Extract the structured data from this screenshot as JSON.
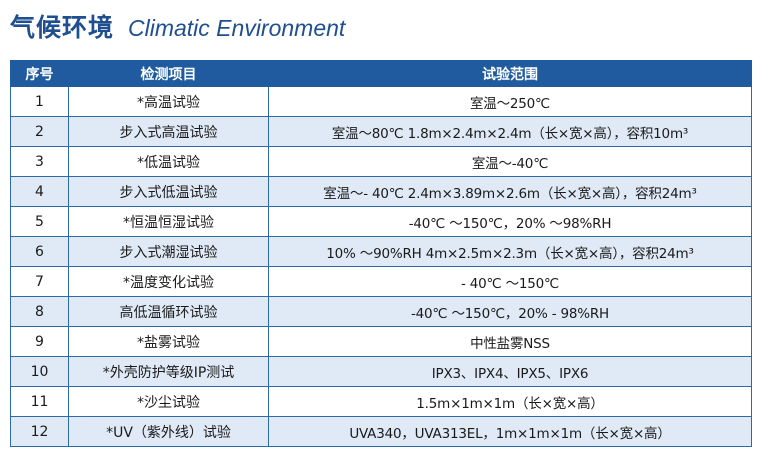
{
  "title": {
    "cn": "气候环境",
    "en": "Climatic Environment"
  },
  "table": {
    "headers": [
      "序号",
      "检测项目",
      "试验范围"
    ],
    "rows": [
      {
        "no": "1",
        "item": "*高温试验",
        "range": "室温～250℃"
      },
      {
        "no": "2",
        "item": "步入式高温试验",
        "range": "室温～80℃ 1.8m×2.4m×2.4m（长×宽×高），容积10m³"
      },
      {
        "no": "3",
        "item": "*低温试验",
        "range": "室温～-40℃"
      },
      {
        "no": "4",
        "item": "步入式低温试验",
        "range": "室温～- 40℃ 2.4m×3.89m×2.6m（长×宽×高），容积24m³"
      },
      {
        "no": "5",
        "item": "*恒温恒湿试验",
        "range": "-40℃ ～150℃，20% ～98%RH"
      },
      {
        "no": "6",
        "item": "步入式潮湿试验",
        "range": "10% ～90%RH 4m×2.5m×2.3m（长×宽×高），容积24m³"
      },
      {
        "no": "7",
        "item": "*温度变化试验",
        "range": "- 40℃ ～150℃"
      },
      {
        "no": "8",
        "item": "高低温循环试验",
        "range": "-40℃ ～150℃，20% - 98%RH"
      },
      {
        "no": "9",
        "item": "*盐雾试验",
        "range": "中性盐雾NSS"
      },
      {
        "no": "10",
        "item": "*外壳防护等级IP测试",
        "range": "IPX3、IPX4、IPX5、IPX6"
      },
      {
        "no": "11",
        "item": "*沙尘试验",
        "range": "1.5m×1m×1m（长×宽×高）"
      },
      {
        "no": "12",
        "item": "*UV（紫外线）试验",
        "range": "UVA340，UVA313EL，1m×1m×1m（长×宽×高）"
      }
    ]
  },
  "colors": {
    "header_bg": "#1f5b9e",
    "title": "#1f4f8f",
    "alt_row": "#dfeaf6"
  }
}
